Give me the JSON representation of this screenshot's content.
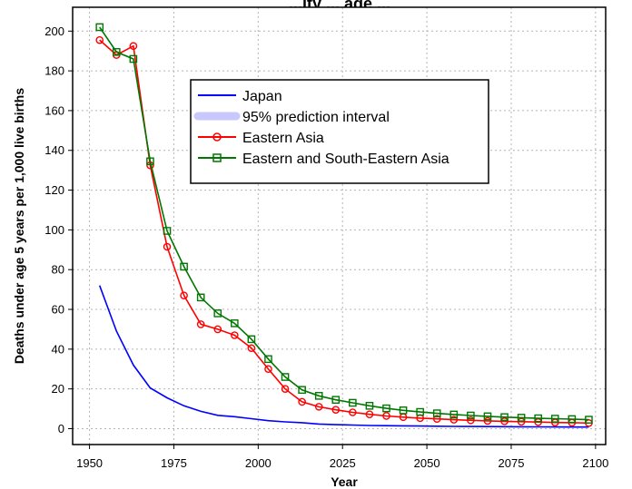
{
  "chart_data": {
    "type": "line",
    "title": "...ity ... age ...",
    "xlabel": "Year",
    "ylabel": "Deaths under age 5 years per 1,000 live births",
    "xlim": [
      1945,
      2103
    ],
    "ylim": [
      -8,
      212
    ],
    "x_ticks": [
      1950,
      1975,
      2000,
      2025,
      2050,
      2075,
      2100
    ],
    "y_ticks": [
      0,
      20,
      40,
      60,
      80,
      100,
      120,
      140,
      160,
      180,
      200
    ],
    "grid": true,
    "legend_position": "upper-center",
    "legend": [
      {
        "label": "Japan",
        "color": "#0000ff",
        "style": "line"
      },
      {
        "label": "95% prediction interval",
        "color": "#c8c8ff",
        "style": "band"
      },
      {
        "label": "Eastern Asia",
        "color": "#ff0000",
        "style": "line-circle"
      },
      {
        "label": "Eastern and South-Eastern Asia",
        "color": "#007700",
        "style": "line-square"
      }
    ],
    "series": [
      {
        "name": "Japan",
        "color": "#0000ff",
        "marker": "none",
        "x": [
          1953,
          1958,
          1963,
          1968,
          1973,
          1978,
          1983,
          1988,
          1993,
          1998,
          2003,
          2008,
          2013,
          2018,
          2023,
          2028,
          2033,
          2038,
          2043,
          2048,
          2053,
          2058,
          2063,
          2068,
          2073,
          2078,
          2083,
          2088,
          2093,
          2098
        ],
        "y": [
          72,
          49,
          32,
          20.5,
          15.5,
          11.5,
          8.7,
          6.7,
          6.0,
          5.0,
          4.0,
          3.4,
          3.0,
          2.3,
          2.0,
          1.8,
          1.6,
          1.5,
          1.4,
          1.3,
          1.2,
          1.15,
          1.1,
          1.05,
          1.0,
          0.95,
          0.9,
          0.85,
          0.8,
          0.8
        ]
      },
      {
        "name": "Eastern Asia",
        "color": "#ff0000",
        "marker": "circle",
        "x": [
          1953,
          1958,
          1963,
          1968,
          1973,
          1978,
          1983,
          1988,
          1993,
          1998,
          2003,
          2008,
          2013,
          2018,
          2023,
          2028,
          2033,
          2038,
          2043,
          2048,
          2053,
          2058,
          2063,
          2068,
          2073,
          2078,
          2083,
          2088,
          2093,
          2098
        ],
        "y": [
          195.5,
          188,
          192.5,
          132.5,
          91.5,
          67,
          52.5,
          50,
          47,
          40.5,
          30,
          20,
          13.5,
          11,
          9.5,
          8.2,
          7.2,
          6.4,
          5.8,
          5.3,
          4.9,
          4.5,
          4.2,
          3.9,
          3.7,
          3.5,
          3.3,
          3.1,
          3.0,
          2.8
        ]
      },
      {
        "name": "Eastern and South-Eastern Asia",
        "color": "#007700",
        "marker": "square",
        "x": [
          1953,
          1958,
          1963,
          1968,
          1973,
          1978,
          1983,
          1988,
          1993,
          1998,
          2003,
          2008,
          2013,
          2018,
          2023,
          2028,
          2033,
          2038,
          2043,
          2048,
          2053,
          2058,
          2063,
          2068,
          2073,
          2078,
          2083,
          2088,
          2093,
          2098
        ],
        "y": [
          202,
          189.5,
          186,
          134.5,
          99.5,
          81.5,
          66,
          58,
          53,
          45,
          35,
          26,
          19.5,
          16.5,
          14.5,
          13,
          11.5,
          10.2,
          9.2,
          8.4,
          7.7,
          7.1,
          6.6,
          6.2,
          5.8,
          5.5,
          5.2,
          5.0,
          4.8,
          4.5
        ]
      }
    ]
  }
}
